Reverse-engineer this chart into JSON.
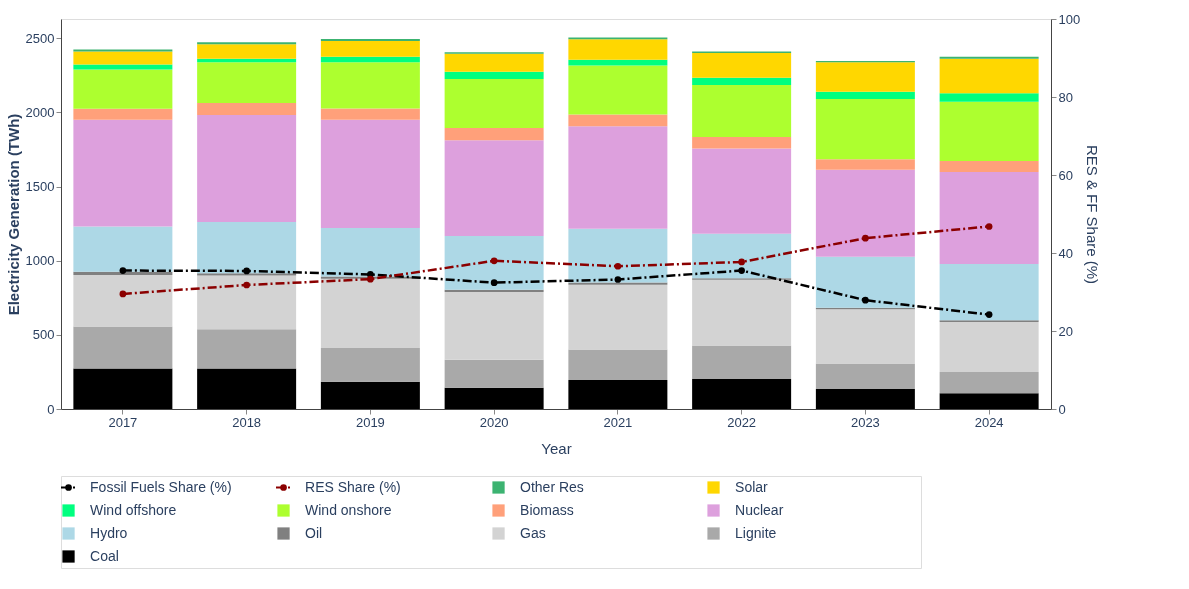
{
  "chart_data": {
    "type": "bar",
    "stacked": true,
    "xlabel": "Year",
    "ylabel": "Electricity Generation (TWh)",
    "y2label": "RES & FF Share (%)",
    "categories": [
      "2017",
      "2018",
      "2019",
      "2020",
      "2021",
      "2022",
      "2023",
      "2024"
    ],
    "ylim": [
      0,
      2630
    ],
    "yticks": [
      0,
      500,
      1000,
      1500,
      2000,
      2500
    ],
    "y2lim": [
      0,
      100
    ],
    "y2ticks": [
      0,
      20,
      40,
      60,
      80,
      100
    ],
    "grid": false,
    "legend": "bottom",
    "marker": "circle",
    "line_style": "dashed",
    "series": [
      {
        "name": "Coal",
        "color": "#000000",
        "values": [
          273,
          273,
          184,
          144,
          195,
          202,
          135,
          106
        ]
      },
      {
        "name": "Lignite",
        "color": "#a9a9a9",
        "values": [
          283,
          265,
          228,
          188,
          206,
          226,
          171,
          144
        ]
      },
      {
        "name": "Gas",
        "color": "#d3d3d3",
        "values": [
          348,
          362,
          466,
          457,
          437,
          443,
          366,
          337
        ]
      },
      {
        "name": "Oil",
        "color": "#808080",
        "values": [
          22,
          15,
          15,
          16,
          15,
          11,
          11,
          11
        ]
      },
      {
        "name": "Hydro",
        "color": "#add8e6",
        "values": [
          304,
          346,
          328,
          361,
          362,
          299,
          343,
          379
        ]
      },
      {
        "name": "Nuclear",
        "color": "#dda0dd",
        "values": [
          720,
          722,
          729,
          647,
          691,
          576,
          588,
          621
        ]
      },
      {
        "name": "Biomass",
        "color": "#ffa07a",
        "values": [
          74,
          80,
          76,
          82,
          80,
          78,
          71,
          75
        ]
      },
      {
        "name": "Wind onshore",
        "color": "#adff2f",
        "values": [
          266,
          275,
          312,
          330,
          330,
          350,
          405,
          399
        ]
      },
      {
        "name": "Wind offshore",
        "color": "#00ff7f",
        "values": [
          33,
          24,
          38,
          49,
          40,
          49,
          49,
          58
        ]
      },
      {
        "name": "Solar",
        "color": "#ffd700",
        "values": [
          88,
          98,
          106,
          122,
          137,
          166,
          199,
          232
        ]
      },
      {
        "name": "Other Res",
        "color": "#3cb371",
        "values": [
          13,
          13,
          13,
          9,
          12,
          11,
          9,
          14
        ]
      },
      {
        "name": "Fossil Fuels Share (%)",
        "type": "line",
        "axis": "y2",
        "color": "#000000",
        "values": [
          35.5,
          35.4,
          34.5,
          32.4,
          33.2,
          35.5,
          27.9,
          24.2
        ]
      },
      {
        "name": "RES Share (%)",
        "type": "line",
        "axis": "y2",
        "color": "#8b0000",
        "values": [
          29.5,
          31.8,
          33.3,
          38.0,
          36.6,
          37.7,
          43.8,
          46.8
        ]
      }
    ]
  }
}
